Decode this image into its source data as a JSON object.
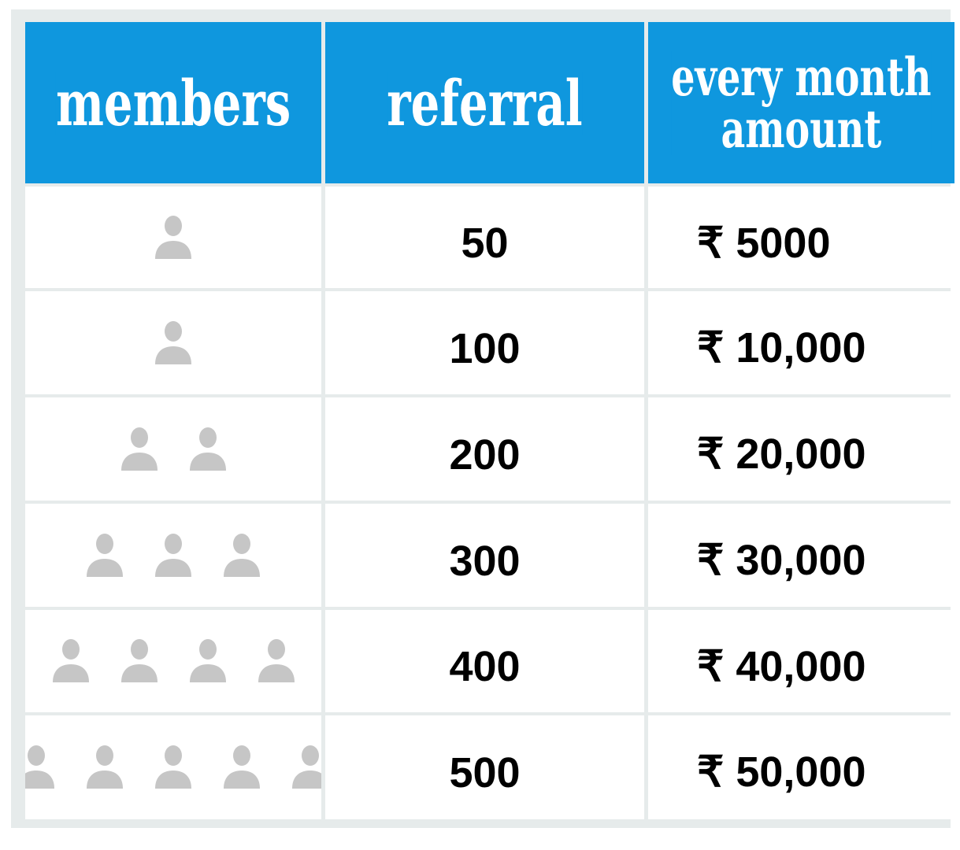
{
  "headers": {
    "members": "members",
    "referral": "referral",
    "amount_line1": "every month",
    "amount_line2": "amount"
  },
  "icon_color": "#c6c6c6",
  "header_color": "#0f97de",
  "rows": [
    {
      "member_icons": 1,
      "icon_name": "person-icon",
      "referral": "50",
      "amount": "₹ 5000"
    },
    {
      "member_icons": 1,
      "icon_name": "person-icon",
      "referral": "100",
      "amount": "₹ 10,000"
    },
    {
      "member_icons": 2,
      "icon_name": "person-icon",
      "referral": "200",
      "amount": "₹ 20,000"
    },
    {
      "member_icons": 3,
      "icon_name": "person-icon",
      "referral": "300",
      "amount": "₹ 30,000"
    },
    {
      "member_icons": 4,
      "icon_name": "person-icon",
      "referral": "400",
      "amount": "₹ 40,000"
    },
    {
      "member_icons": 5,
      "icon_name": "person-icon",
      "referral": "500",
      "amount": "₹ 50,000"
    }
  ]
}
